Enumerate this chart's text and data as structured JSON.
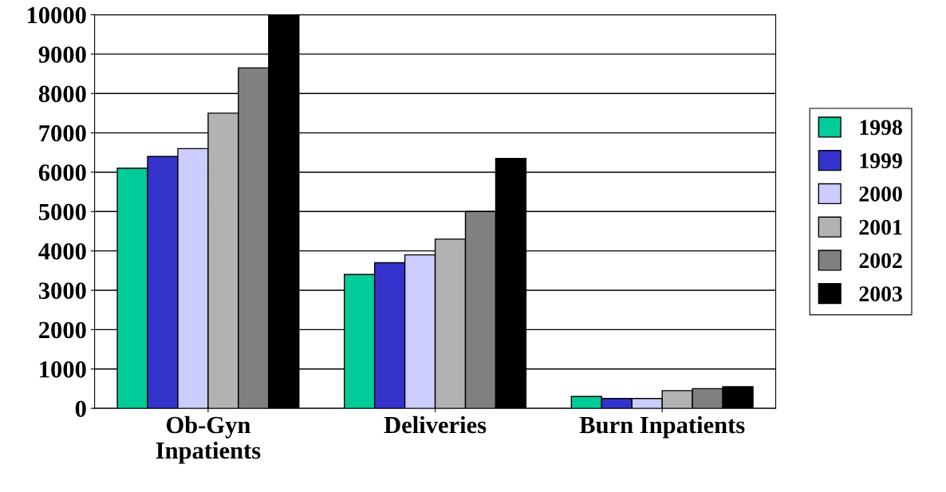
{
  "chart_data": {
    "type": "bar",
    "categories": [
      "Ob-Gyn\nInpatients",
      "Deliveries",
      "Burn Inpatients"
    ],
    "series": [
      {
        "name": "1998",
        "color": "#00cc99",
        "values": [
          6100,
          3400,
          300
        ]
      },
      {
        "name": "1999",
        "color": "#3333cc",
        "values": [
          6400,
          3700,
          250
        ]
      },
      {
        "name": "2000",
        "color": "#ccccff",
        "values": [
          6600,
          3900,
          250
        ]
      },
      {
        "name": "2001",
        "color": "#b2b2b2",
        "values": [
          7500,
          4300,
          450
        ]
      },
      {
        "name": "2002",
        "color": "#808080",
        "values": [
          8650,
          5000,
          500
        ]
      },
      {
        "name": "2003",
        "color": "#000000",
        "values": [
          10000,
          6350,
          550
        ]
      }
    ],
    "ylim": [
      0,
      10000
    ],
    "yticks": [
      0,
      1000,
      2000,
      3000,
      4000,
      5000,
      6000,
      7000,
      8000,
      9000,
      10000
    ],
    "grid": "y",
    "legend": "right"
  }
}
